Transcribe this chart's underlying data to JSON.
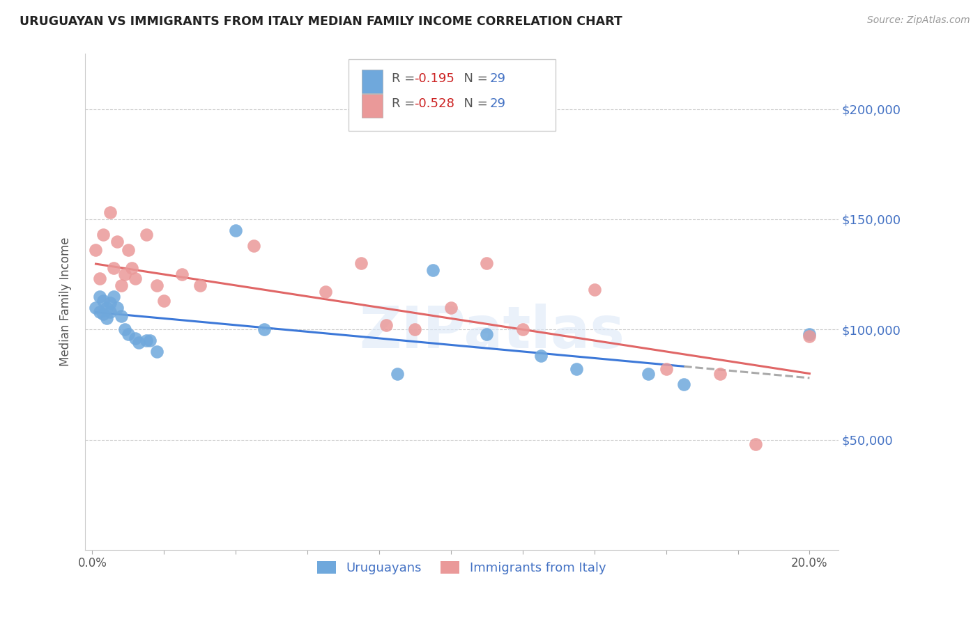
{
  "title": "URUGUAYAN VS IMMIGRANTS FROM ITALY MEDIAN FAMILY INCOME CORRELATION CHART",
  "source": "Source: ZipAtlas.com",
  "ylabel": "Median Family Income",
  "xlabel_ticks": [
    "0.0%",
    "",
    "",
    "",
    "",
    "",
    "",
    "",
    "",
    "",
    "20.0%"
  ],
  "xlabel_tick_vals": [
    0.0,
    0.02,
    0.04,
    0.06,
    0.08,
    0.1,
    0.12,
    0.14,
    0.16,
    0.18,
    0.2
  ],
  "ytick_labels": [
    "$50,000",
    "$100,000",
    "$150,000",
    "$200,000"
  ],
  "ytick_vals": [
    50000,
    100000,
    150000,
    200000
  ],
  "ylim": [
    0,
    225000
  ],
  "xlim": [
    -0.002,
    0.208
  ],
  "background_color": "#ffffff",
  "grid_color": "#cccccc",
  "uruguayan_color": "#6fa8dc",
  "italy_color": "#ea9999",
  "trendline_uru_color": "#3c78d8",
  "trendline_italy_color": "#e06666",
  "trendline_uru_dashed_color": "#aaaaaa",
  "R_uru": "-0.195",
  "N_uru": "29",
  "R_italy": "-0.528",
  "N_italy": "29",
  "legend_label_uru": "Uruguayans",
  "legend_label_italy": "Immigrants from Italy",
  "watermark": "ZIPatlas",
  "uruguayan_x": [
    0.001,
    0.002,
    0.002,
    0.003,
    0.003,
    0.004,
    0.004,
    0.005,
    0.005,
    0.006,
    0.007,
    0.008,
    0.009,
    0.01,
    0.012,
    0.013,
    0.015,
    0.016,
    0.018,
    0.04,
    0.048,
    0.085,
    0.095,
    0.11,
    0.125,
    0.135,
    0.155,
    0.165,
    0.2
  ],
  "uruguayan_y": [
    110000,
    115000,
    108000,
    113000,
    107000,
    110000,
    105000,
    112000,
    108000,
    115000,
    110000,
    106000,
    100000,
    98000,
    96000,
    94000,
    95000,
    95000,
    90000,
    145000,
    100000,
    80000,
    127000,
    98000,
    88000,
    82000,
    80000,
    75000,
    98000
  ],
  "italy_x": [
    0.001,
    0.002,
    0.003,
    0.005,
    0.006,
    0.007,
    0.008,
    0.009,
    0.01,
    0.011,
    0.012,
    0.015,
    0.018,
    0.02,
    0.025,
    0.03,
    0.045,
    0.065,
    0.075,
    0.082,
    0.09,
    0.1,
    0.11,
    0.12,
    0.14,
    0.16,
    0.175,
    0.185,
    0.2
  ],
  "italy_y": [
    136000,
    123000,
    143000,
    153000,
    128000,
    140000,
    120000,
    125000,
    136000,
    128000,
    123000,
    143000,
    120000,
    113000,
    125000,
    120000,
    138000,
    117000,
    130000,
    102000,
    100000,
    110000,
    130000,
    100000,
    118000,
    82000,
    80000,
    48000,
    97000
  ],
  "trendline_uru_x_start": 0.001,
  "trendline_uru_x_end": 0.2,
  "trendline_uru_solid_end": 0.165,
  "trendline_italy_x_start": 0.001,
  "trendline_italy_x_end": 0.2
}
